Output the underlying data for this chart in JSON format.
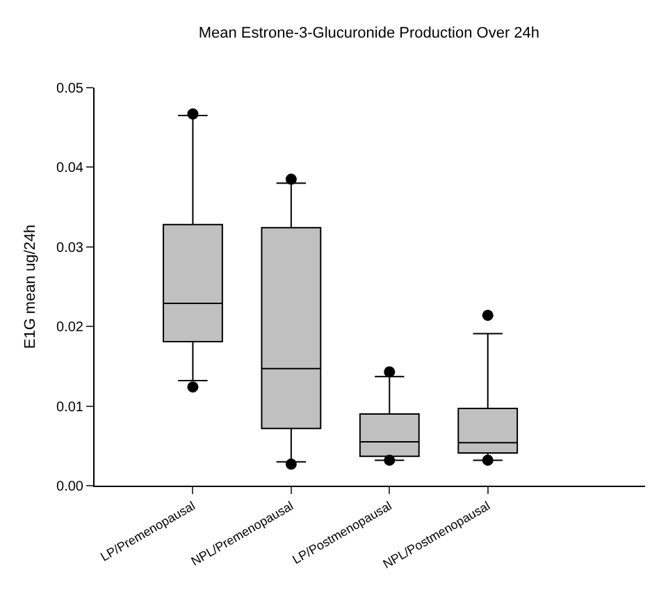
{
  "chart_data": {
    "type": "box",
    "title": "Mean Estrone-3-Glucuronide Production Over 24h",
    "ylabel": "E1G mean ug/24h",
    "categories": [
      "LP/Premenopausal",
      "NPL/Premenopausal",
      "LP/Postmenopausal",
      "NPL/Postmenopausal"
    ],
    "color": "#c0c0c0",
    "boxes": [
      {
        "low": 0.0132,
        "q1": 0.0181,
        "median": 0.0229,
        "q3": 0.0328,
        "high": 0.0465,
        "outliers": [
          0.0124,
          0.0467
        ]
      },
      {
        "low": 0.003,
        "q1": 0.0072,
        "median": 0.0147,
        "q3": 0.0324,
        "high": 0.038,
        "outliers": [
          0.0027,
          0.0385
        ]
      },
      {
        "low": 0.0032,
        "q1": 0.0037,
        "median": 0.0055,
        "q3": 0.009,
        "high": 0.0137,
        "outliers": [
          0.0032,
          0.0143
        ]
      },
      {
        "low": 0.0032,
        "q1": 0.0041,
        "median": 0.0054,
        "q3": 0.0097,
        "high": 0.0191,
        "outliers": [
          0.0032,
          0.0214
        ]
      }
    ],
    "ylim": [
      0,
      0.05
    ],
    "yticks": [
      {
        "value": 0,
        "label": "0.00"
      },
      {
        "value": 0.01,
        "label": "0.01"
      },
      {
        "value": 0.02,
        "label": "0.02"
      },
      {
        "value": 0.03,
        "label": "0.03"
      },
      {
        "value": 0.04,
        "label": "0.04"
      },
      {
        "value": 0.05,
        "label": "0.05"
      }
    ],
    "grid": false,
    "marker": "circle"
  }
}
